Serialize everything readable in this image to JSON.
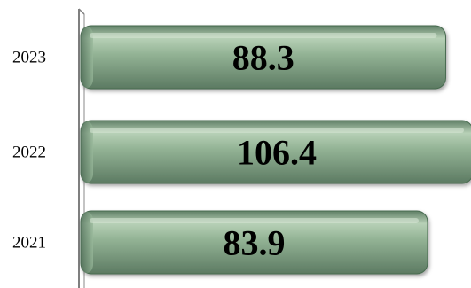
{
  "chart_data": {
    "type": "bar",
    "orientation": "horizontal",
    "categories": [
      "2023",
      "2022",
      "2021"
    ],
    "values": [
      88.3,
      106.4,
      83.9
    ],
    "value_labels": [
      "88.3",
      "106.4",
      "83.9"
    ],
    "title": "",
    "xlabel": "",
    "ylabel": "",
    "grid": false,
    "legend": "none",
    "colors": {
      "bar_dark": "#6f8f73",
      "bar_mid": "#97b89a",
      "bar_light": "#c9dcc8",
      "bar_edge": "#476a4f",
      "axis": "#7f7f7f",
      "text": "#000000"
    }
  }
}
